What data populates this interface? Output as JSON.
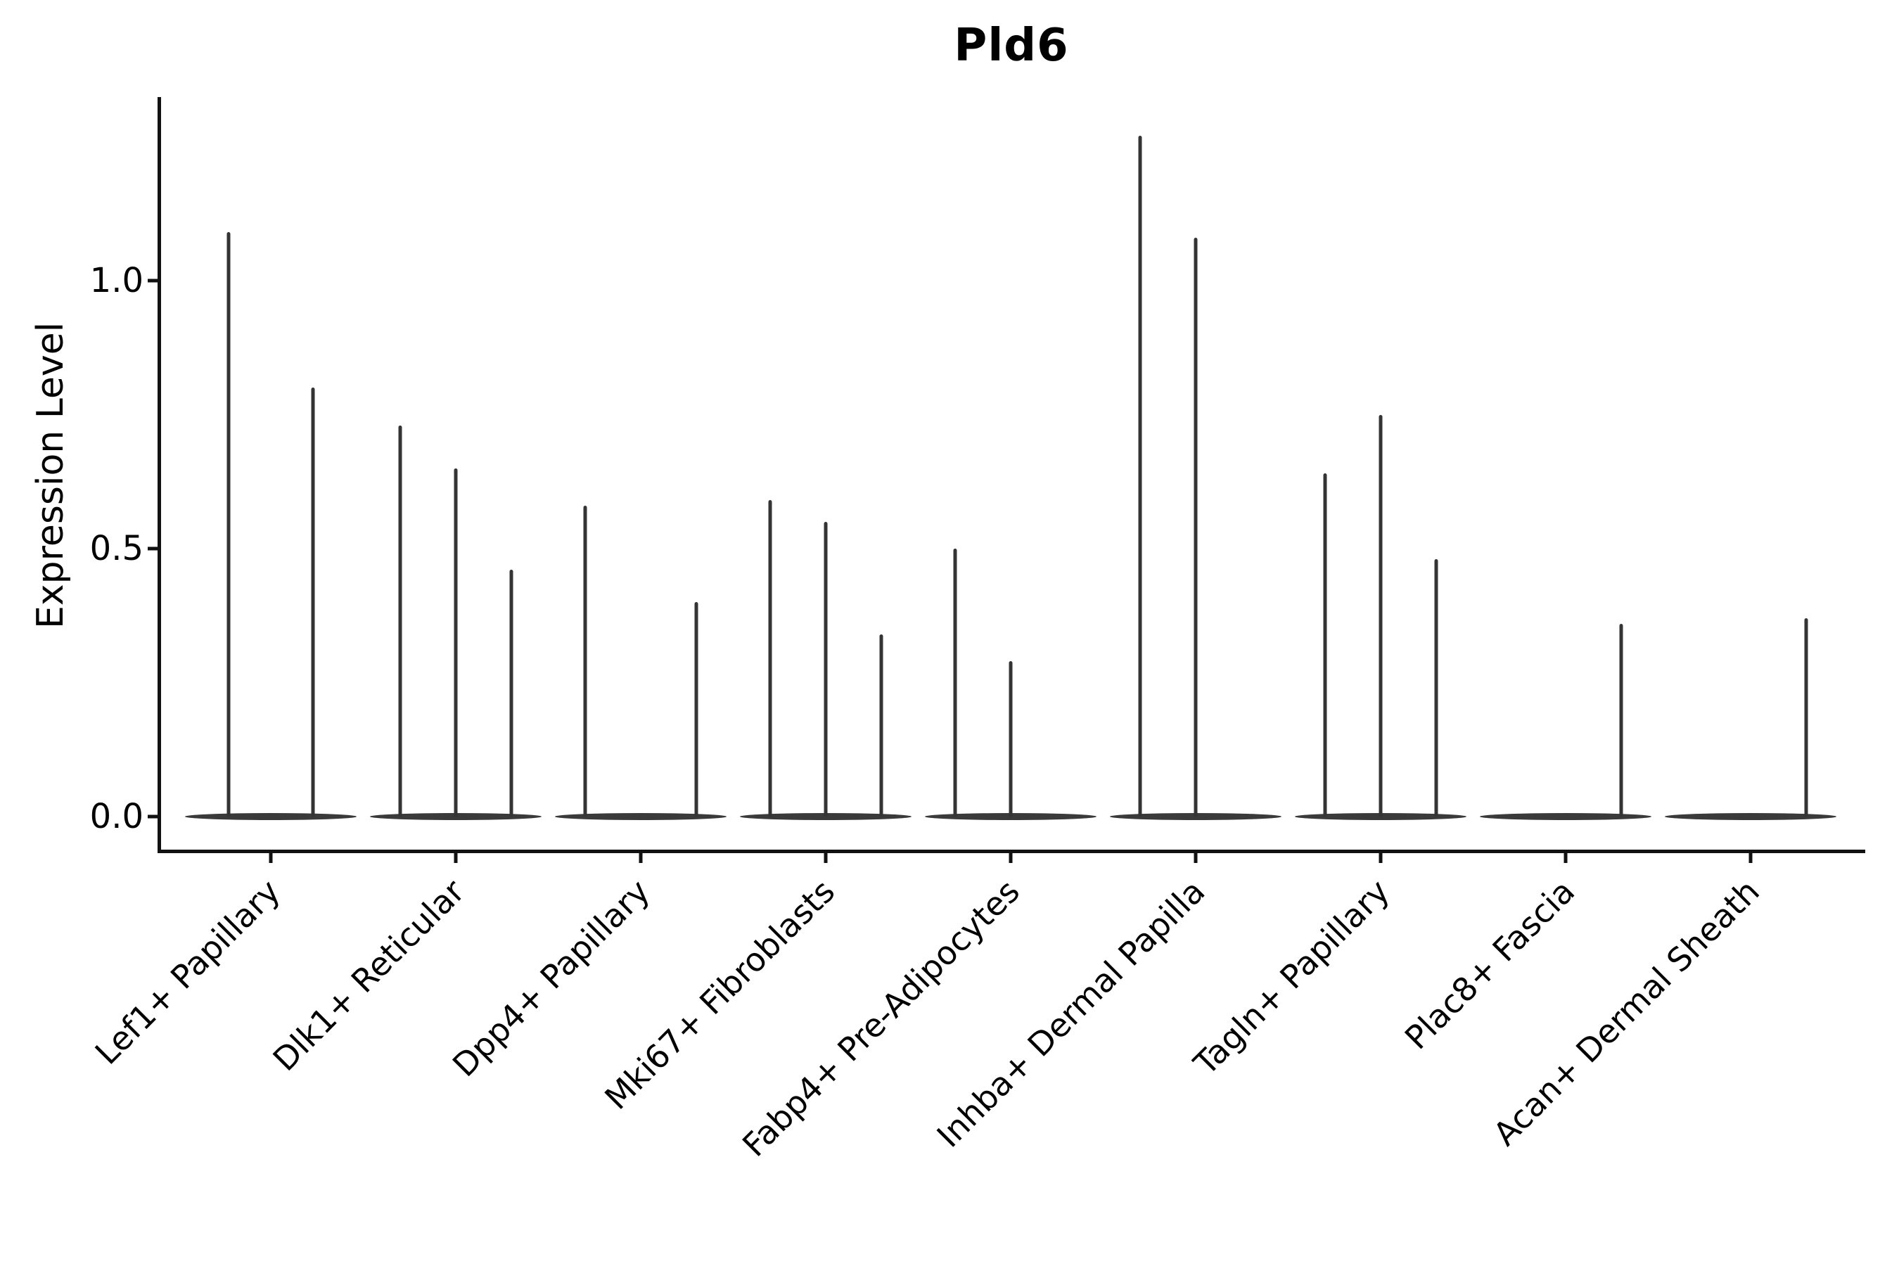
{
  "title": "Pld6",
  "y_axis": {
    "label": "Expression Level",
    "tick_labels": [
      "0.0",
      "0.5",
      "1.0"
    ]
  },
  "chart_data": {
    "type": "violin",
    "title": "Pld6",
    "xlabel": "",
    "ylabel": "Expression Level",
    "ytick_values": [
      0.0,
      0.5,
      1.0
    ],
    "ylim": [
      -0.06,
      1.34
    ],
    "grid": false,
    "legend": "none",
    "categories": [
      "Lef1+ Papillary",
      "Dlk1+ Reticular",
      "Dpp4+ Papillary",
      "Mki67+ Fibroblasts",
      "Fabp4+ Pre-Adipocytes",
      "Inhba+ Dermal Papilla",
      "Tagln+ Papillary",
      "Plac8+ Fascia",
      "Acan+ Dermal Sheath"
    ],
    "baseline_value": 0.0,
    "violins": [
      {
        "category": "Lef1+ Papillary",
        "n_subviolins": 2,
        "spikes": [
          {
            "slot": "left",
            "max_expression": 1.09
          },
          {
            "slot": "right",
            "max_expression": 0.8
          }
        ]
      },
      {
        "category": "Dlk1+ Reticular",
        "n_subviolins": 3,
        "spikes": [
          {
            "slot": "left",
            "max_expression": 0.73
          },
          {
            "slot": "center",
            "max_expression": 0.65
          },
          {
            "slot": "right",
            "max_expression": 0.46
          }
        ]
      },
      {
        "category": "Dpp4+ Papillary",
        "n_subviolins": 3,
        "spikes": [
          {
            "slot": "left",
            "max_expression": 0.58
          },
          {
            "slot": "right",
            "max_expression": 0.4
          }
        ]
      },
      {
        "category": "Mki67+ Fibroblasts",
        "n_subviolins": 3,
        "spikes": [
          {
            "slot": "left",
            "max_expression": 0.59
          },
          {
            "slot": "center",
            "max_expression": 0.55
          },
          {
            "slot": "right",
            "max_expression": 0.34
          }
        ]
      },
      {
        "category": "Fabp4+ Pre-Adipocytes",
        "n_subviolins": 3,
        "spikes": [
          {
            "slot": "left",
            "max_expression": 0.5
          },
          {
            "slot": "center",
            "max_expression": 0.29
          }
        ]
      },
      {
        "category": "Inhba+ Dermal Papilla",
        "n_subviolins": 3,
        "spikes": [
          {
            "slot": "left",
            "max_expression": 1.27
          },
          {
            "slot": "center",
            "max_expression": 1.08
          }
        ]
      },
      {
        "category": "Tagln+ Papillary",
        "n_subviolins": 3,
        "spikes": [
          {
            "slot": "left",
            "max_expression": 0.64
          },
          {
            "slot": "center",
            "max_expression": 0.75
          },
          {
            "slot": "right",
            "max_expression": 0.48
          }
        ]
      },
      {
        "category": "Plac8+ Fascia",
        "n_subviolins": 3,
        "spikes": [
          {
            "slot": "right",
            "max_expression": 0.36
          }
        ]
      },
      {
        "category": "Acan+ Dermal Sheath",
        "n_subviolins": 3,
        "spikes": [
          {
            "slot": "right",
            "max_expression": 0.37
          }
        ]
      }
    ],
    "style": {
      "violin_color": "#3a3a3a",
      "axis_color": "#111111",
      "text_color": "#000000",
      "background": "#ffffff"
    }
  }
}
